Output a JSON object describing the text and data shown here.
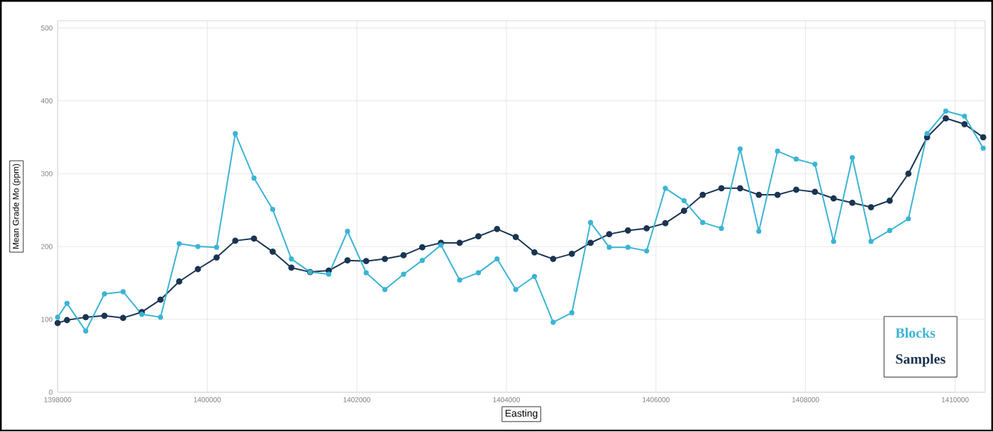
{
  "chart_data": {
    "type": "line",
    "xlabel": "Easting",
    "ylabel": "Mean Grade Mo (ppm)",
    "x": [
      1398000,
      1398125,
      1398375,
      1398625,
      1398875,
      1399125,
      1399375,
      1399625,
      1399875,
      1400125,
      1400375,
      1400625,
      1400875,
      1401125,
      1401375,
      1401625,
      1401875,
      1402125,
      1402375,
      1402625,
      1402875,
      1403125,
      1403375,
      1403625,
      1403875,
      1404125,
      1404375,
      1404625,
      1404875,
      1405125,
      1405375,
      1405625,
      1405875,
      1406125,
      1406375,
      1406625,
      1406875,
      1407125,
      1407375,
      1407625,
      1407875,
      1408125,
      1408375,
      1408625,
      1408875,
      1409125,
      1409375,
      1409625,
      1409875,
      1410125,
      1410375
    ],
    "series": [
      {
        "name": "Blocks",
        "color": "#3bb4d4",
        "values": [
          103,
          122,
          84,
          135,
          138,
          107,
          103,
          204,
          200,
          199,
          355,
          294,
          251,
          183,
          165,
          162,
          221,
          164,
          141,
          162,
          181,
          202,
          154,
          164,
          183,
          141,
          159,
          96,
          109,
          233,
          199,
          199,
          194,
          280,
          263,
          233,
          225,
          334,
          221,
          331,
          320,
          313,
          207,
          322,
          207,
          222,
          238,
          355,
          386,
          379,
          335
        ]
      },
      {
        "name": "Samples",
        "color": "#1a3552",
        "values": [
          95,
          99,
          103,
          105,
          102,
          110,
          127,
          152,
          169,
          185,
          208,
          211,
          193,
          171,
          165,
          167,
          181,
          180,
          183,
          188,
          199,
          205,
          205,
          214,
          224,
          213,
          192,
          183,
          190,
          205,
          217,
          222,
          225,
          232,
          249,
          271,
          280,
          280,
          271,
          271,
          278,
          275,
          266,
          260,
          254,
          263,
          300,
          350,
          376,
          368,
          350
        ]
      }
    ],
    "xlim": [
      1398000,
      1410400
    ],
    "ylim": [
      0,
      510
    ],
    "xticks": [
      1398000,
      1400000,
      1402000,
      1404000,
      1406000,
      1408000,
      1410000
    ],
    "yticks": [
      0,
      100,
      200,
      300,
      400,
      500
    ],
    "grid": true,
    "legend": "bottom right",
    "marker": "circle",
    "line_style": "solid"
  }
}
